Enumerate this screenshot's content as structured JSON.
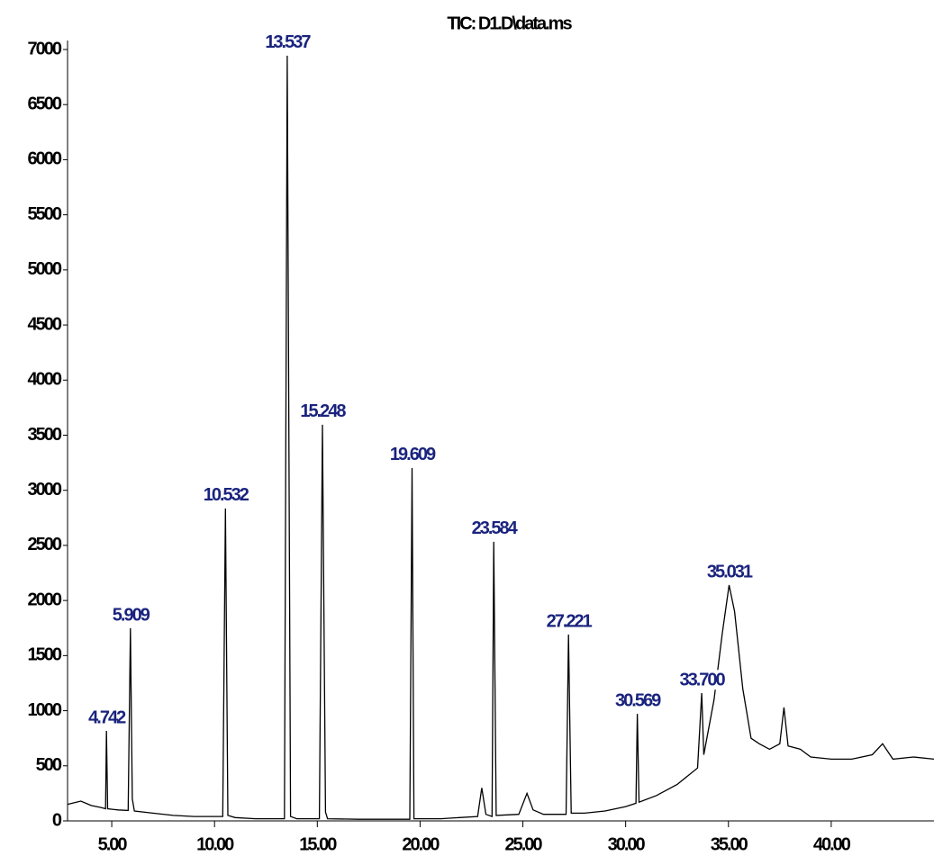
{
  "chart_data": {
    "type": "line",
    "title": "TIC: D1.D\\data.ms",
    "xlim": [
      2.85,
      45.0
    ],
    "ylim": [
      0,
      7000
    ],
    "xticks": [
      {
        "value": 5,
        "label": "5.00"
      },
      {
        "value": 10,
        "label": "10.00"
      },
      {
        "value": 15,
        "label": "15.00"
      },
      {
        "value": 20,
        "label": "20.00"
      },
      {
        "value": 25,
        "label": "25.00"
      },
      {
        "value": 30,
        "label": "30.00"
      },
      {
        "value": 35,
        "label": "35.00"
      },
      {
        "value": 40,
        "label": "40.00"
      }
    ],
    "yticks": [
      0,
      500,
      1000,
      1500,
      2000,
      2500,
      3000,
      3500,
      4000,
      4500,
      5000,
      5500,
      6000,
      6500,
      7000
    ],
    "series": [
      {
        "color": "#000000",
        "x": [
          2.85,
          3.5,
          4.0,
          4.5,
          4.7,
          4.742,
          4.8,
          5.3,
          5.8,
          5.909,
          6.0,
          6.1,
          7,
          8,
          9,
          10.4,
          10.532,
          10.65,
          11,
          12,
          13.4,
          13.537,
          13.7,
          14,
          15.1,
          15.248,
          15.4,
          15.5,
          17,
          19.5,
          19.609,
          19.7,
          21,
          22.8,
          23.0,
          23.2,
          23.5,
          23.584,
          23.7,
          24.8,
          25.2,
          25.5,
          26,
          27.1,
          27.221,
          27.35,
          28,
          29,
          30,
          30.5,
          30.569,
          30.65,
          31.5,
          32.5,
          33.5,
          33.7,
          33.8,
          34.3,
          34.7,
          35.031,
          35.3,
          35.7,
          36.1,
          36.5,
          37,
          37.5,
          37.7,
          37.9,
          38.5,
          39,
          40,
          41,
          42,
          42.5,
          43,
          44,
          45
        ],
        "values": [
          150,
          180,
          140,
          120,
          110,
          817,
          110,
          100,
          95,
          1748,
          200,
          90,
          70,
          50,
          40,
          40,
          2835,
          50,
          30,
          20,
          20,
          6944,
          40,
          20,
          20,
          3595,
          80,
          20,
          15,
          15,
          3203,
          20,
          20,
          40,
          300,
          60,
          40,
          2533,
          50,
          60,
          250,
          100,
          60,
          60,
          1691,
          70,
          70,
          90,
          130,
          160,
          972,
          170,
          230,
          330,
          480,
          1160,
          600,
          1100,
          1700,
          2140,
          1900,
          1200,
          750,
          700,
          650,
          700,
          1030,
          680,
          650,
          580,
          560,
          560,
          600,
          700,
          560,
          580,
          560
        ]
      }
    ],
    "peak_labels": [
      {
        "x": 4.742,
        "text": "4.742"
      },
      {
        "x": 5.909,
        "text": "5.909"
      },
      {
        "x": 10.532,
        "text": "10.532"
      },
      {
        "x": 13.537,
        "text": "13.537"
      },
      {
        "x": 15.248,
        "text": "15.248"
      },
      {
        "x": 19.609,
        "text": "19.609"
      },
      {
        "x": 23.584,
        "text": "23.584"
      },
      {
        "x": 27.221,
        "text": "27.221"
      },
      {
        "x": 30.569,
        "text": "30.569"
      },
      {
        "x": 33.7,
        "text": "33.700"
      },
      {
        "x": 35.031,
        "text": "35.031"
      }
    ]
  }
}
